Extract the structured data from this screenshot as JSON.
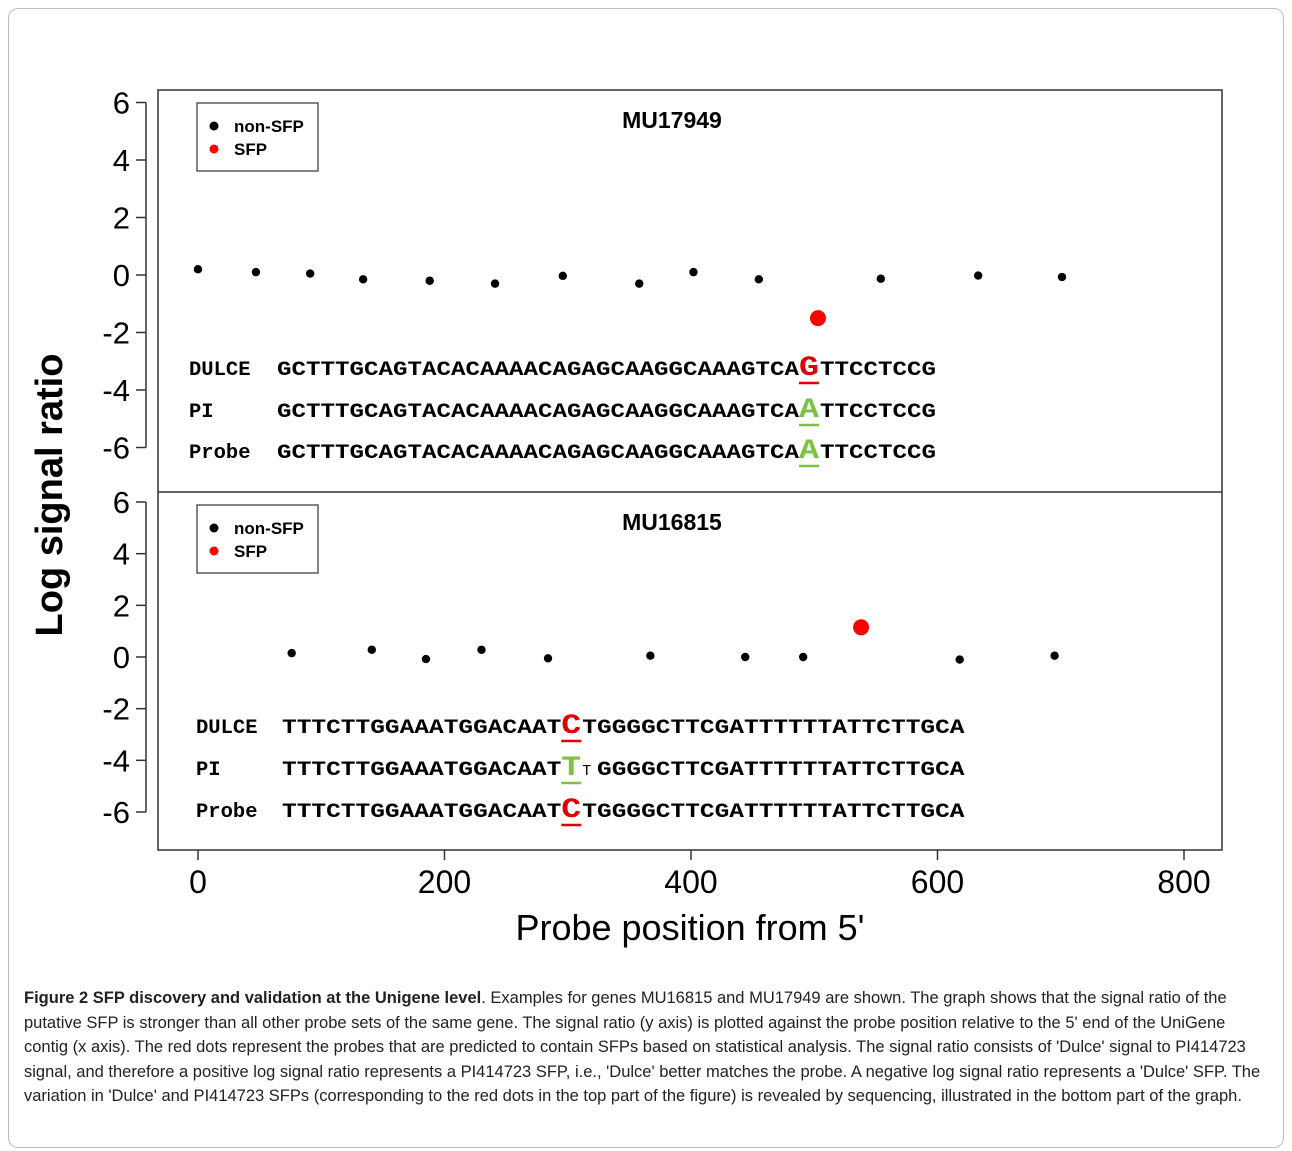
{
  "chart_data": {
    "type": "scatter",
    "xlabel": "Probe position from 5'",
    "ylabel": "Log signal ratio",
    "xlim": [
      -30,
      810
    ],
    "x_ticks": [
      "0",
      "200",
      "400",
      "600",
      "800"
    ],
    "y_ticks": [
      "6",
      "4",
      "2",
      "0",
      "-2",
      "-4",
      "-6"
    ],
    "legend": {
      "placement": "top-left",
      "entries": [
        "non-SFP",
        "SFP"
      ]
    },
    "colors": {
      "non_sfp": "#000000",
      "sfp": "#ff0000",
      "variant_red": "#e00000",
      "variant_green": "#7dc242"
    },
    "panels": [
      {
        "title": "MU17949",
        "ylim": [
          -7.5,
          6.5
        ],
        "series": [
          {
            "name": "non-SFP",
            "points": [
              [
                0,
                0.2
              ],
              [
                47,
                0.1
              ],
              [
                91,
                0.05
              ],
              [
                134,
                -0.15
              ],
              [
                188,
                -0.2
              ],
              [
                241,
                -0.3
              ],
              [
                296,
                -0.03
              ],
              [
                358,
                -0.3
              ],
              [
                402,
                0.1
              ],
              [
                455,
                -0.15
              ],
              [
                554,
                -0.13
              ],
              [
                633,
                -0.02
              ],
              [
                701,
                -0.07
              ]
            ]
          },
          {
            "name": "SFP",
            "points": [
              [
                503,
                -1.5
              ]
            ]
          }
        ],
        "sequences": [
          {
            "label": "DULCE",
            "pre": "GCTTTGCAGTACACAAAACAGAGCAAGGCAAAGTCA",
            "base": "G",
            "post": "TTCCTCCG",
            "color": "red",
            "small": false
          },
          {
            "label": "PI",
            "pre": "GCTTTGCAGTACACAAAACAGAGCAAGGCAAAGTCA",
            "base": "A",
            "post": "TTCCTCCG",
            "color": "green",
            "small": false
          },
          {
            "label": "Probe",
            "pre": "GCTTTGCAGTACACAAAACAGAGCAAGGCAAAGTCA",
            "base": "A",
            "post": "TTCCTCCG",
            "color": "green",
            "small": false
          }
        ]
      },
      {
        "title": "MU16815",
        "ylim": [
          -7,
          6.3
        ],
        "series": [
          {
            "name": "non-SFP",
            "points": [
              [
                76,
                0.15
              ],
              [
                141,
                0.28
              ],
              [
                185,
                -0.08
              ],
              [
                230,
                0.28
              ],
              [
                284,
                -0.05
              ],
              [
                367,
                0.05
              ],
              [
                444,
                0.0
              ],
              [
                491,
                0.0
              ],
              [
                618,
                -0.1
              ],
              [
                695,
                0.05
              ]
            ]
          },
          {
            "name": "SFP",
            "points": [
              [
                538,
                1.15
              ]
            ]
          }
        ],
        "sequences": [
          {
            "label": "DULCE",
            "pre": "TTTCTTGGAAATGGACAAT",
            "base": "C",
            "post": "TGGGGCTTCGATTTTTTATTCTTGCA",
            "color": "red",
            "small": false
          },
          {
            "label": "PI",
            "pre": "TTTCTTGGAAATGGACAAT",
            "base": "T",
            "post": "TGGGGCTTCGATTTTTTATTCTTGCA",
            "color": "green",
            "small": true
          },
          {
            "label": "Probe",
            "pre": "TTTCTTGGAAATGGACAAT",
            "base": "C",
            "post": "TGGGGCTTCGATTTTTTATTCTTGCA",
            "color": "red",
            "small": false
          }
        ]
      }
    ]
  },
  "caption": {
    "bold": "Figure 2 SFP discovery and validation at the Unigene level",
    "text": ". Examples for genes MU16815 and MU17949 are shown. The graph shows that the signal ratio of the putative SFP is stronger than all other probe sets of the same gene. The signal ratio (y axis) is plotted against the probe position relative to the 5' end of the UniGene contig (x axis). The red dots represent the probes that are predicted to contain SFPs based on statistical analysis. The signal ratio consists of 'Dulce' signal to PI414723 signal, and therefore a positive log signal ratio represents a PI414723 SFP, i.e., 'Dulce' better matches the probe. A negative log signal ratio represents a 'Dulce' SFP. The variation in 'Dulce' and PI414723 SFPs (corresponding to the red dots in the top part of the figure) is revealed by sequencing, illustrated in the bottom part of the graph."
  }
}
